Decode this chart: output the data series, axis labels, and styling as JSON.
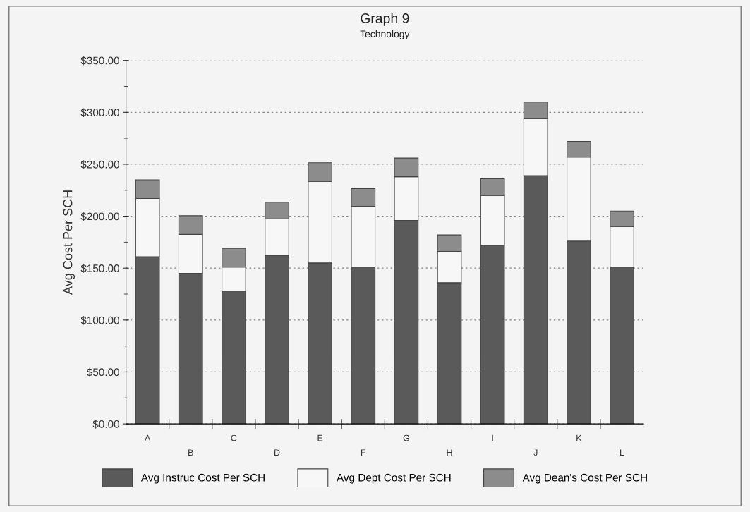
{
  "chart_data": {
    "type": "bar",
    "title": "Graph 9",
    "subtitle": "Technology",
    "ylabel": "Avg Cost Per SCH",
    "categories": [
      "A",
      "B",
      "C",
      "D",
      "E",
      "F",
      "G",
      "H",
      "I",
      "J",
      "K",
      "L"
    ],
    "stacked": true,
    "series": [
      {
        "name": "Avg Instruc Cost Per SCH",
        "color": "#5a5a5a",
        "values": [
          161,
          145,
          128,
          162,
          155,
          151,
          196,
          136,
          172,
          239,
          176,
          151
        ]
      },
      {
        "name": "Avg Dept Cost Per SCH",
        "color": "#f7f7f7",
        "values": [
          56,
          37.5,
          23,
          35.5,
          78.5,
          58.5,
          42,
          30,
          48,
          55,
          81,
          39
        ]
      },
      {
        "name": "Avg Dean's Cost Per SCH",
        "color": "#8c8c8c",
        "values": [
          18,
          18,
          18,
          16,
          18,
          17,
          18,
          16,
          16,
          16,
          15,
          15
        ]
      }
    ],
    "ylim": [
      0,
      350
    ],
    "yticks": [
      {
        "value": 0,
        "label": "$0.00"
      },
      {
        "value": 50,
        "label": "$50.00"
      },
      {
        "value": 100,
        "label": "$100.00"
      },
      {
        "value": 150,
        "label": "$150.00"
      },
      {
        "value": 200,
        "label": "$200.00"
      },
      {
        "value": 250,
        "label": "$250.00"
      },
      {
        "value": 300,
        "label": "$300.00"
      },
      {
        "value": 350,
        "label": "$350.00"
      }
    ],
    "grid": "y",
    "legend": "bottom"
  }
}
